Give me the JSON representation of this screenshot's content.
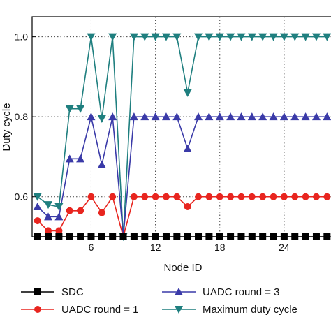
{
  "chart_data": {
    "type": "line",
    "xlabel": "Node ID",
    "ylabel": "Duty cycle",
    "xlim": [
      0.5,
      28.5
    ],
    "ylim": [
      0.5,
      1.05
    ],
    "x_ticks": [
      6,
      12,
      18,
      24
    ],
    "y_ticks": [
      0.6,
      0.8,
      1.0
    ],
    "y_tick_labels": [
      "0.6",
      "0.8",
      "1.0"
    ],
    "grid": "dotted",
    "legend_placement": "bottom",
    "x": [
      1,
      2,
      3,
      4,
      5,
      6,
      7,
      8,
      9,
      10,
      11,
      12,
      13,
      14,
      15,
      16,
      17,
      18,
      19,
      20,
      21,
      22,
      23,
      24,
      25,
      26,
      27,
      28
    ],
    "series": [
      {
        "name": "SDC",
        "color": "#000000",
        "marker": "square",
        "values": [
          0.5,
          0.5,
          0.5,
          0.5,
          0.5,
          0.5,
          0.5,
          0.5,
          0.5,
          0.5,
          0.5,
          0.5,
          0.5,
          0.5,
          0.5,
          0.5,
          0.5,
          0.5,
          0.5,
          0.5,
          0.5,
          0.5,
          0.5,
          0.5,
          0.5,
          0.5,
          0.5,
          0.5
        ]
      },
      {
        "name": "UADC round = 1",
        "color": "#e8251f",
        "marker": "circle",
        "values": [
          0.54,
          0.515,
          0.515,
          0.565,
          0.565,
          0.6,
          0.56,
          0.6,
          0.5,
          0.6,
          0.6,
          0.6,
          0.6,
          0.6,
          0.575,
          0.6,
          0.6,
          0.6,
          0.6,
          0.6,
          0.6,
          0.6,
          0.6,
          0.6,
          0.6,
          0.6,
          0.6,
          0.6
        ]
      },
      {
        "name": "UADC round = 3",
        "color": "#3a3aa8",
        "marker": "triangle-up",
        "values": [
          0.575,
          0.55,
          0.55,
          0.695,
          0.695,
          0.8,
          0.68,
          0.8,
          0.5,
          0.8,
          0.8,
          0.8,
          0.8,
          0.8,
          0.72,
          0.8,
          0.8,
          0.8,
          0.8,
          0.8,
          0.8,
          0.8,
          0.8,
          0.8,
          0.8,
          0.8,
          0.8,
          0.8
        ]
      },
      {
        "name": "Maximum duty cycle",
        "color": "#1f7f7f",
        "marker": "triangle-down",
        "values": [
          0.6,
          0.58,
          0.575,
          0.82,
          0.82,
          1.0,
          0.795,
          1.0,
          0.5,
          1.0,
          1.0,
          1.0,
          1.0,
          1.0,
          0.86,
          1.0,
          1.0,
          1.0,
          1.0,
          1.0,
          1.0,
          1.0,
          1.0,
          1.0,
          1.0,
          1.0,
          1.0,
          1.0
        ]
      }
    ]
  }
}
